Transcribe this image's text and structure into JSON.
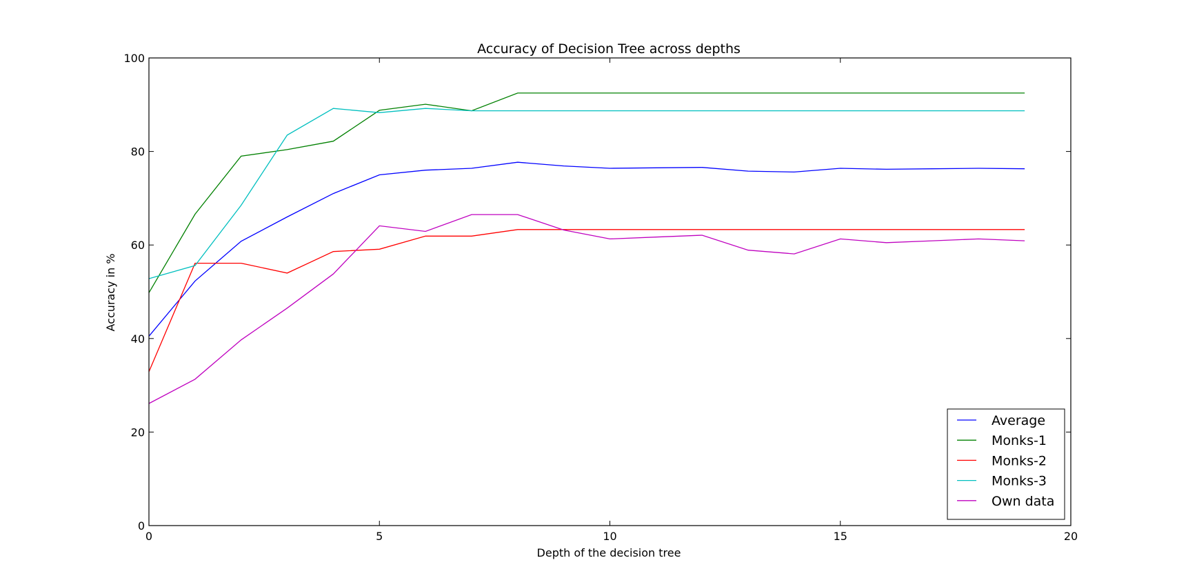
{
  "chart_data": {
    "type": "line",
    "title": "Accuracy of Decision Tree across depths",
    "xlabel": "Depth of the decision tree",
    "ylabel": "Accuracy in %",
    "xlim": [
      0,
      20
    ],
    "ylim": [
      0,
      100
    ],
    "xticks": [
      0,
      5,
      10,
      15,
      20
    ],
    "yticks": [
      0,
      20,
      40,
      60,
      80,
      100
    ],
    "grid": false,
    "legend_position": "bottom-right",
    "x": [
      0,
      1,
      2,
      3,
      4,
      5,
      6,
      7,
      8,
      9,
      10,
      11,
      12,
      13,
      14,
      15,
      16,
      17,
      18,
      19
    ],
    "series": [
      {
        "name": "Average",
        "color": "#0000ff",
        "values": [
          40.5,
          52.3,
          60.8,
          66.0,
          71.0,
          75.0,
          76.0,
          76.4,
          77.7,
          76.9,
          76.4,
          76.5,
          76.6,
          75.8,
          75.6,
          76.4,
          76.2,
          76.3,
          76.4,
          76.3
        ]
      },
      {
        "name": "Monks-1",
        "color": "#008000",
        "values": [
          49.8,
          66.6,
          79.0,
          80.4,
          82.2,
          88.8,
          90.1,
          88.7,
          92.5,
          92.5,
          92.5,
          92.5,
          92.5,
          92.5,
          92.5,
          92.5,
          92.5,
          92.5,
          92.5,
          92.5
        ]
      },
      {
        "name": "Monks-2",
        "color": "#ff0000",
        "values": [
          32.9,
          56.1,
          56.1,
          54.0,
          58.6,
          59.1,
          61.9,
          61.9,
          63.3,
          63.3,
          63.3,
          63.3,
          63.3,
          63.3,
          63.3,
          63.3,
          63.3,
          63.3,
          63.3,
          63.3
        ]
      },
      {
        "name": "Monks-3",
        "color": "#00bfbf",
        "values": [
          52.8,
          55.6,
          68.5,
          83.5,
          89.2,
          88.3,
          89.2,
          88.7,
          88.7,
          88.7,
          88.7,
          88.7,
          88.7,
          88.7,
          88.7,
          88.7,
          88.7,
          88.7,
          88.7,
          88.7
        ]
      },
      {
        "name": "Own data",
        "color": "#bf00bf",
        "values": [
          26.1,
          31.3,
          39.7,
          46.5,
          53.8,
          64.1,
          62.9,
          66.5,
          66.5,
          63.2,
          61.3,
          61.7,
          62.1,
          58.9,
          58.1,
          61.3,
          60.5,
          60.9,
          61.3,
          60.9
        ]
      }
    ]
  }
}
